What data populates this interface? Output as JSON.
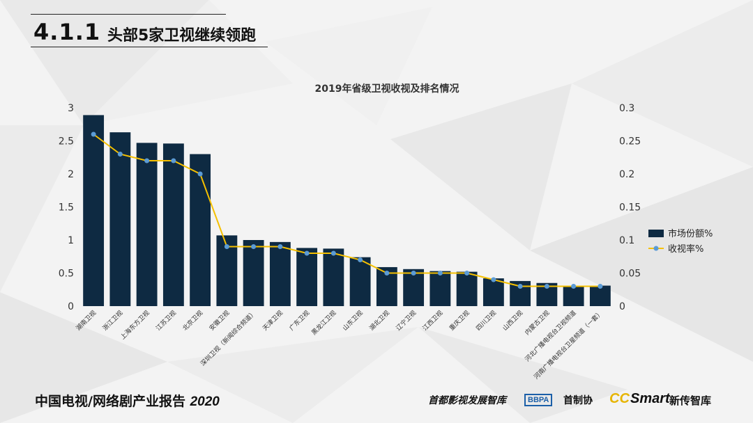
{
  "header": {
    "section_number": "4.1.1",
    "title": "头部5家卫视继续领跑"
  },
  "footer": {
    "report_title": "中国电视/网络剧产业报告",
    "report_year": "2020",
    "logo_1": "首都影视发展智库",
    "logo_2_badge": "BBPA",
    "logo_2_text": "首制协",
    "logo_3_cc": "CC",
    "logo_3_smart": "Smart",
    "logo_3_text": "新传智库"
  },
  "colors": {
    "bar": "#0e2a42",
    "line": "#f5c000",
    "marker": "#5b9bd5",
    "axis_text": "#333333"
  },
  "chart_data": {
    "type": "bar",
    "title": "2019年省级卫视收视及排名情况",
    "categories": [
      "湖南卫视",
      "浙江卫视",
      "上海东方卫视",
      "江苏卫视",
      "北京卫视",
      "安徽卫视",
      "深圳卫视（新闻综合频道）",
      "天津卫视",
      "广东卫视",
      "黑龙江卫视",
      "山东卫视",
      "湖北卫视",
      "辽宁卫视",
      "江西卫视",
      "重庆卫视",
      "四川卫视",
      "山西卫视",
      "内蒙古卫视",
      "河北广播电视台卫视频道",
      "河南广播电视台卫星频道（一套）"
    ],
    "series": [
      {
        "name": "市场份额%",
        "type": "bar",
        "axis": "left",
        "values": [
          2.89,
          2.63,
          2.47,
          2.46,
          2.3,
          1.07,
          1.0,
          0.97,
          0.88,
          0.87,
          0.74,
          0.59,
          0.56,
          0.53,
          0.52,
          0.42,
          0.38,
          0.35,
          0.31,
          0.31
        ]
      },
      {
        "name": "收视率%",
        "type": "line",
        "axis": "right",
        "values": [
          0.26,
          0.23,
          0.22,
          0.22,
          0.2,
          0.09,
          0.09,
          0.09,
          0.08,
          0.08,
          0.07,
          0.05,
          0.05,
          0.05,
          0.05,
          0.04,
          0.03,
          0.03,
          0.03,
          0.03
        ]
      }
    ],
    "y_left": {
      "min": 0,
      "max": 3,
      "ticks": [
        "0",
        "0.5",
        "1",
        "1.5",
        "2",
        "2.5",
        "3"
      ]
    },
    "y_right": {
      "min": 0,
      "max": 0.3,
      "ticks": [
        "0",
        "0.05",
        "0.1",
        "0.15",
        "0.2",
        "0.25",
        "0.3"
      ]
    },
    "grid": false,
    "legend": "right"
  }
}
